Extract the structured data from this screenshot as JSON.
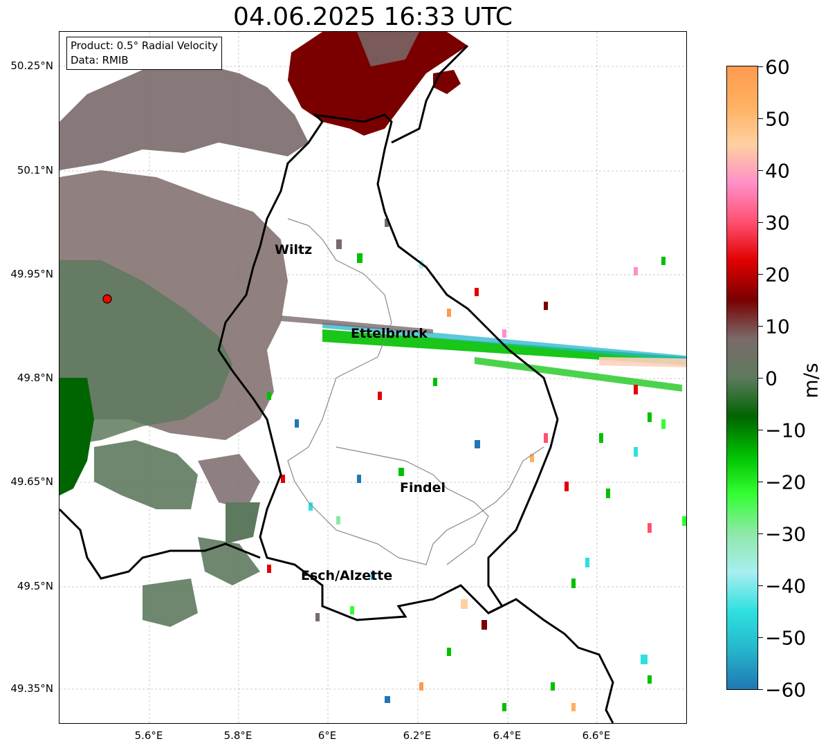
{
  "title": "04.06.2025 16:33 UTC",
  "infobox": {
    "product": "Product: 0.5° Radial Velocity",
    "source": "Data: RMIB"
  },
  "axes": {
    "lat_ticks": [
      "50.25°N",
      "50.1°N",
      "49.95°N",
      "49.8°N",
      "49.65°N",
      "49.5°N",
      "49.35°N"
    ],
    "lon_ticks": [
      "5.6°E",
      "5.8°E",
      "6°E",
      "6.2°E",
      "6.4°E",
      "6.6°E"
    ]
  },
  "colorbar": {
    "ticks": [
      "60",
      "50",
      "40",
      "30",
      "20",
      "10",
      "0",
      "−10",
      "−20",
      "−30",
      "−40",
      "−50",
      "−60"
    ],
    "unit": "m/s",
    "range": [
      -60,
      60
    ],
    "colors": [
      "#1f77b4",
      "#26b5cc",
      "#2ee0e0",
      "#a8eef0",
      "#8ee8a8",
      "#33ff33",
      "#00c000",
      "#006400",
      "#5e7a5e",
      "#7a6a6a",
      "#7a0000",
      "#e00000",
      "#ff5070",
      "#ff90c8",
      "#ffd0a0",
      "#ffb060",
      "#ff9a50"
    ]
  },
  "cities": {
    "wiltz": "Wiltz",
    "ettelbruck": "Ettelbruck",
    "findel": "Findel",
    "esch": "Esch/Alzette"
  },
  "colors": {
    "receding_dark": "#7a0000",
    "approaching_green": "#00c000",
    "near_zero_gray": "#7a6e6e",
    "near_zero_green": "#5e7a5e",
    "cyan": "#26b5cc",
    "radar_site": "#ff0000"
  }
}
